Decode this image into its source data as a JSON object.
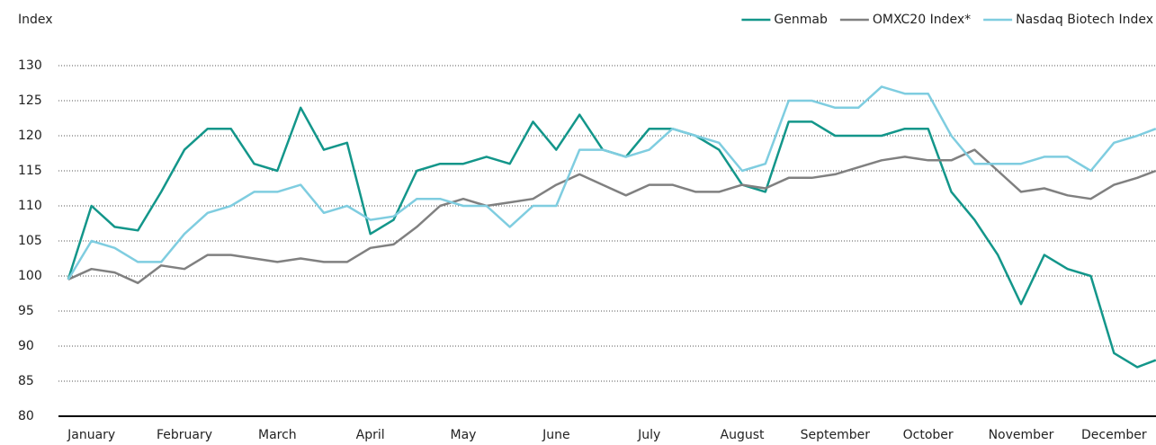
{
  "chart_data": {
    "type": "line",
    "y_label": "Index",
    "x": [
      0.25,
      0.5,
      0.75,
      1.0,
      1.25,
      1.5,
      1.75,
      2.0,
      2.25,
      2.5,
      2.75,
      3.0,
      3.25,
      3.5,
      3.75,
      4.0,
      4.25,
      4.5,
      4.75,
      5.0,
      5.25,
      5.5,
      5.75,
      6.0,
      6.25,
      6.5,
      6.75,
      7.0,
      7.25,
      7.5,
      7.75,
      8.0,
      8.25,
      8.5,
      8.75,
      9.0,
      9.25,
      9.5,
      9.75,
      10.0,
      10.25,
      10.5,
      10.75,
      11.0,
      11.25,
      11.5,
      11.75,
      11.95
    ],
    "series": [
      {
        "name": "Genmab",
        "color": "#13968a",
        "values": [
          99.5,
          110,
          107,
          106.5,
          112,
          118,
          121,
          121,
          116,
          115,
          124,
          118,
          119,
          106,
          108,
          115,
          116,
          116,
          117,
          116,
          122,
          118,
          123,
          118,
          117,
          121,
          121,
          120,
          118,
          113,
          112,
          122,
          122,
          120,
          120,
          120,
          121,
          121,
          112,
          108,
          103,
          96,
          103,
          101,
          100,
          89,
          87,
          88
        ]
      },
      {
        "name": "OMXC20 Index*",
        "color": "#808080",
        "values": [
          99.5,
          101,
          100.5,
          99,
          101.5,
          101,
          103,
          103,
          102.5,
          102,
          102.5,
          102,
          102,
          104,
          104.5,
          107,
          110,
          111,
          110,
          110.5,
          111,
          113,
          114.5,
          113,
          111.5,
          113,
          113,
          112,
          112,
          113,
          112.5,
          114,
          114,
          114.5,
          115.5,
          116.5,
          117,
          116.5,
          116.5,
          118,
          115,
          112,
          112.5,
          111.5,
          111,
          113,
          114,
          115
        ]
      },
      {
        "name": "Nasdaq Biotech Index",
        "color": "#7fcde0",
        "values": [
          99.5,
          105,
          104,
          102,
          102,
          106,
          109,
          110,
          112,
          112,
          113,
          109,
          110,
          108,
          108.5,
          111,
          111,
          110,
          110,
          107,
          110,
          110,
          118,
          118,
          117,
          118,
          121,
          120,
          119,
          115,
          116,
          125,
          125,
          124,
          124,
          127,
          126,
          126,
          120,
          116,
          116,
          116,
          117,
          117,
          115,
          119,
          120,
          121
        ]
      }
    ],
    "xlim": [
      0,
      12
    ],
    "xticks": [
      {
        "value": 0.5,
        "label": "January"
      },
      {
        "value": 1.5,
        "label": "February"
      },
      {
        "value": 2.5,
        "label": "March"
      },
      {
        "value": 3.5,
        "label": "April"
      },
      {
        "value": 4.5,
        "label": "May"
      },
      {
        "value": 5.5,
        "label": "June"
      },
      {
        "value": 6.5,
        "label": "July"
      },
      {
        "value": 7.5,
        "label": "August"
      },
      {
        "value": 8.5,
        "label": "September"
      },
      {
        "value": 9.5,
        "label": "October"
      },
      {
        "value": 10.5,
        "label": "November"
      },
      {
        "value": 11.5,
        "label": "December"
      }
    ],
    "ylim": [
      80,
      130
    ],
    "yticks": [
      80,
      85,
      90,
      95,
      100,
      105,
      110,
      115,
      120,
      125,
      130
    ],
    "grid": true
  }
}
